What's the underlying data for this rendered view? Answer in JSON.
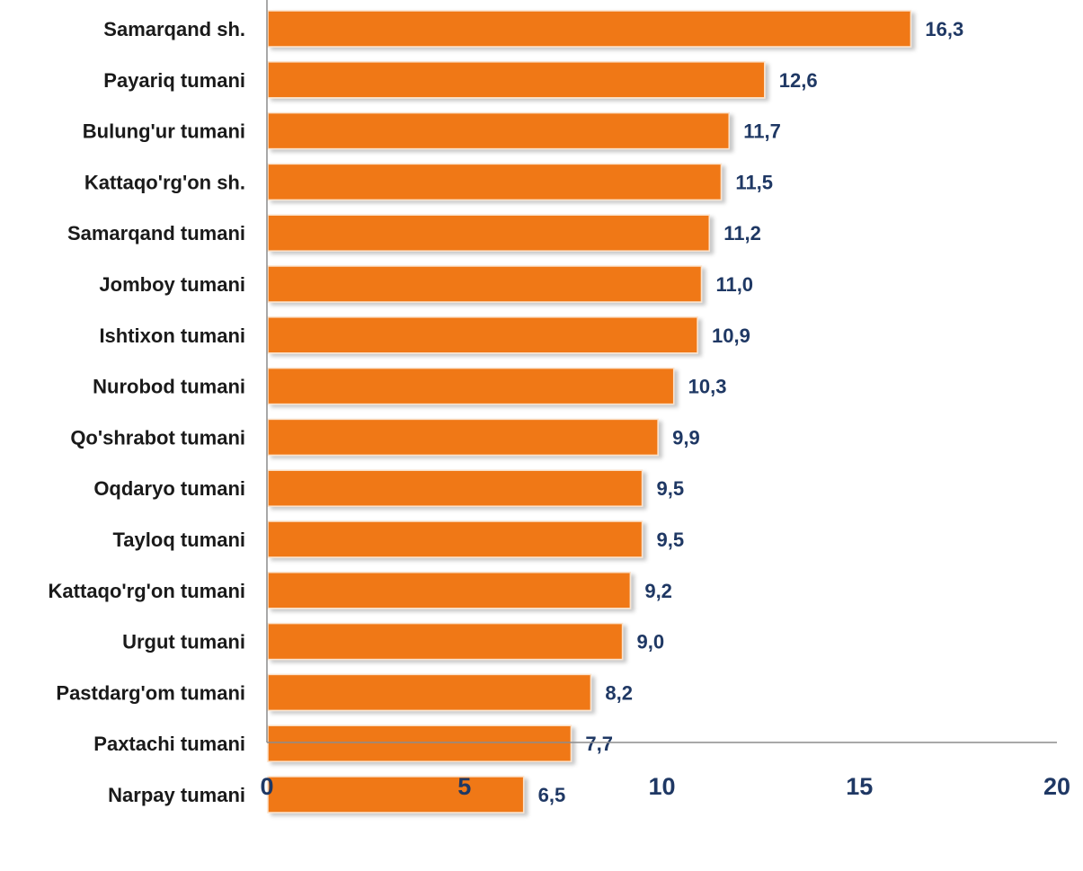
{
  "chart_data": {
    "type": "bar",
    "orientation": "horizontal",
    "title": "",
    "xlabel": "",
    "ylabel": "",
    "categories": [
      "Samarqand sh.",
      "Payariq tumani",
      "Bulung'ur tumani",
      "Kattaqo'rg'on sh.",
      "Samarqand tumani",
      "Jomboy tumani",
      "Ishtixon tumani",
      "Nurobod tumani",
      "Qo'shrabot tumani",
      "Oqdaryo tumani",
      "Tayloq tumani",
      "Kattaqo'rg'on tumani",
      "Urgut tumani",
      "Pastdarg'om tumani",
      "Paxtachi tumani",
      "Narpay tumani"
    ],
    "values": [
      16.3,
      12.6,
      11.7,
      11.5,
      11.2,
      11.0,
      10.9,
      10.3,
      9.9,
      9.5,
      9.5,
      9.2,
      9.0,
      8.2,
      7.7,
      6.5
    ],
    "value_labels": [
      "16,3",
      "12,6",
      "11,7",
      "11,5",
      "11,2",
      "11,0",
      "10,9",
      "10,3",
      "9,9",
      "9,5",
      "9,5",
      "9,2",
      "9,0",
      "8,2",
      "7,7",
      "6,5"
    ],
    "xlim": [
      0,
      20
    ],
    "xticks": [
      "0",
      "5",
      "10",
      "15",
      "20"
    ],
    "grid": false,
    "legend": "none",
    "colors": {
      "bar": "#F07818",
      "category_text": "#1A1A1A",
      "value_text": "#1F3864",
      "tick_text": "#1F3864",
      "axis": "#8C8C8C"
    }
  }
}
